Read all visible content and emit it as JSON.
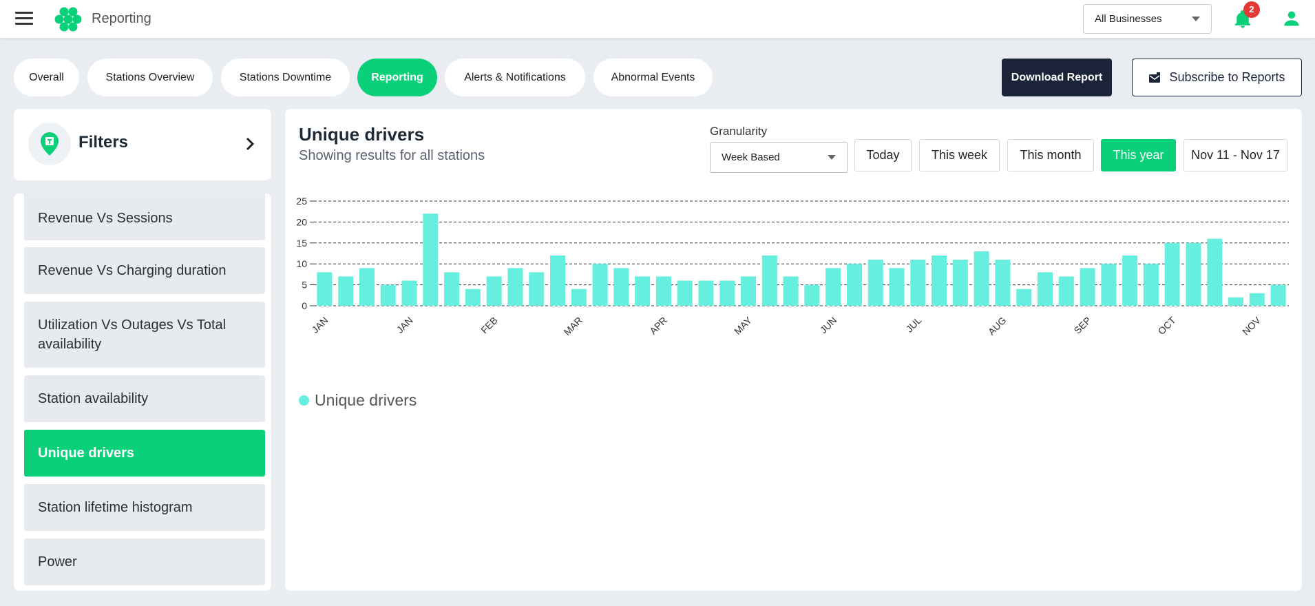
{
  "app": {
    "title": "Reporting"
  },
  "header": {
    "business_select": "All Businesses",
    "notification_count": "2"
  },
  "tabs": [
    {
      "label": "Overall"
    },
    {
      "label": "Stations Overview"
    },
    {
      "label": "Stations Downtime"
    },
    {
      "label": "Reporting",
      "active": true
    },
    {
      "label": "Alerts & Notifications"
    },
    {
      "label": "Abnormal Events"
    }
  ],
  "actions": {
    "download": "Download Report",
    "subscribe": "Subscribe to Reports"
  },
  "filters": {
    "label": "Filters"
  },
  "sidebar": {
    "items": [
      {
        "label": "Revenue Vs Sessions"
      },
      {
        "label": "Revenue Vs Charging duration"
      },
      {
        "label": "Utilization Vs Outages Vs Total availability"
      },
      {
        "label": "Station availability"
      },
      {
        "label": "Unique drivers",
        "active": true
      },
      {
        "label": "Station lifetime histogram"
      },
      {
        "label": "Power"
      }
    ]
  },
  "panel": {
    "title": "Unique drivers",
    "subtitle": "Showing results for all stations",
    "granularity_label": "Granularity",
    "granularity_value": "Week Based",
    "ranges": [
      {
        "label": "Today"
      },
      {
        "label": "This week"
      },
      {
        "label": "This month"
      },
      {
        "label": "This year",
        "active": true
      },
      {
        "label": "Nov 11 - Nov 17"
      }
    ]
  },
  "colors": {
    "accent": "#0ad07a",
    "bar": "#66efdf",
    "dark": "#1b2338",
    "badge": "#e53935"
  },
  "chart_data": {
    "type": "bar",
    "ylim": [
      0,
      25
    ],
    "yticks": [
      0,
      5,
      10,
      15,
      20,
      25
    ],
    "grid": true,
    "legend_position": "bottom-left",
    "xtick_labels": [
      {
        "index": 0,
        "label": "JAN"
      },
      {
        "index": 4,
        "label": "JAN"
      },
      {
        "index": 8,
        "label": "FEB"
      },
      {
        "index": 12,
        "label": "MAR"
      },
      {
        "index": 16,
        "label": "APR"
      },
      {
        "index": 20,
        "label": "MAY"
      },
      {
        "index": 24,
        "label": "JUN"
      },
      {
        "index": 28,
        "label": "JUL"
      },
      {
        "index": 32,
        "label": "AUG"
      },
      {
        "index": 36,
        "label": "SEP"
      },
      {
        "index": 40,
        "label": "OCT"
      },
      {
        "index": 44,
        "label": "NOV"
      }
    ],
    "series": [
      {
        "name": "Unique drivers",
        "values": [
          8,
          7,
          9,
          5,
          6,
          22,
          8,
          4,
          7,
          9,
          8,
          12,
          4,
          10,
          9,
          7,
          7,
          6,
          6,
          6,
          7,
          12,
          7,
          5,
          9,
          10,
          11,
          9,
          11,
          12,
          11,
          13,
          11,
          4,
          8,
          7,
          9,
          10,
          12,
          10,
          15,
          15,
          16,
          2,
          3,
          5
        ]
      }
    ]
  }
}
